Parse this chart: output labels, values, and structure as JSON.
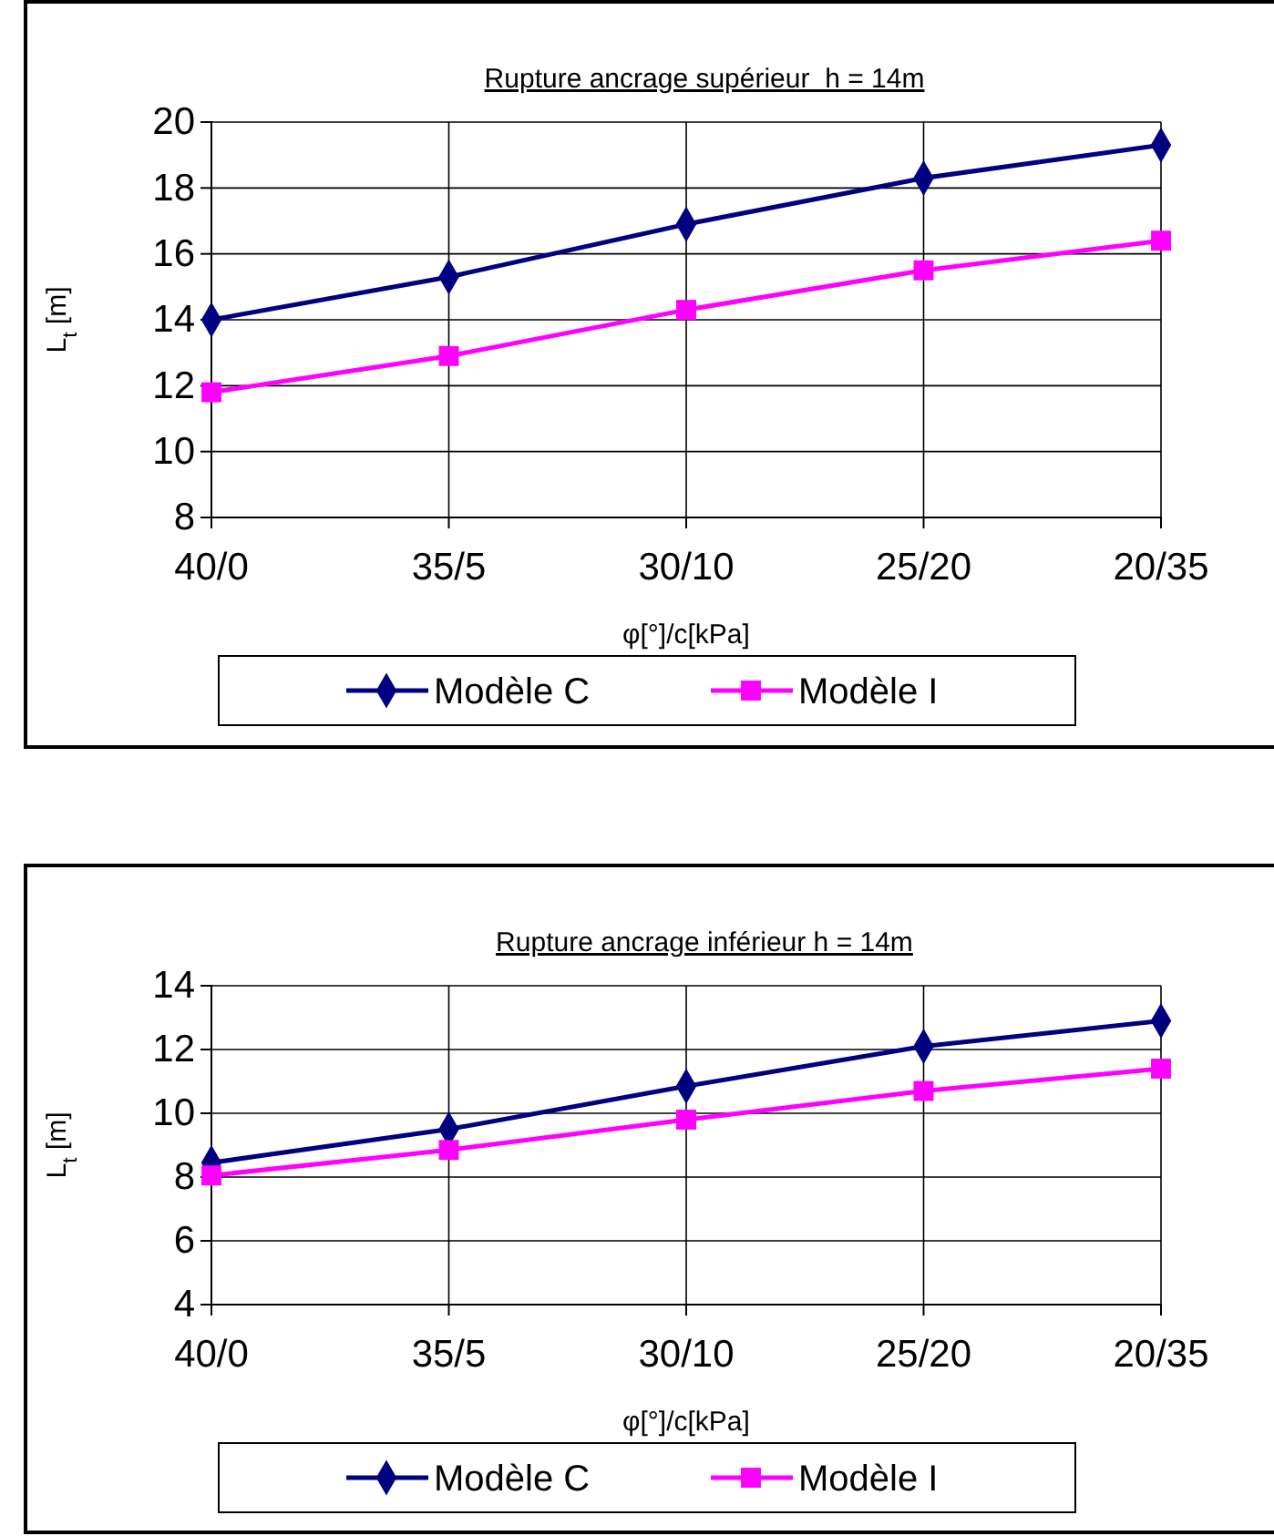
{
  "chart_data": [
    {
      "type": "line",
      "title": "Rupture ancrage supérieur  h = 14m",
      "xlabel": "φ[°]/c[kPa]",
      "ylabel": "L$_{t}$ [m]",
      "categories": [
        "40/0",
        "35/5",
        "30/10",
        "25/20",
        "20/35"
      ],
      "series": [
        {
          "name": "Modèle C",
          "color": "#000080",
          "marker": "diamond",
          "values": [
            14.0,
            15.3,
            16.9,
            18.3,
            19.3
          ]
        },
        {
          "name": "Modèle I",
          "color": "#ff00ff",
          "marker": "square",
          "values": [
            11.8,
            12.9,
            14.3,
            15.5,
            16.4
          ]
        }
      ],
      "ylim": [
        8,
        20
      ],
      "yticks": [
        8,
        10,
        12,
        14,
        16,
        18,
        20
      ],
      "grid": true,
      "legend": "bottom"
    },
    {
      "type": "line",
      "title": "Rupture ancrage inférieur h = 14m",
      "xlabel": "φ[°]/c[kPa]",
      "ylabel": "L$_{t}$ [m]",
      "categories": [
        "40/0",
        "35/5",
        "30/10",
        "25/20",
        "20/35"
      ],
      "series": [
        {
          "name": "Modèle C",
          "color": "#000080",
          "marker": "diamond",
          "values": [
            8.45,
            9.5,
            10.85,
            12.1,
            12.9
          ]
        },
        {
          "name": "Modèle I",
          "color": "#ff00ff",
          "marker": "square",
          "values": [
            8.05,
            8.85,
            9.8,
            10.7,
            11.4
          ]
        }
      ],
      "ylim": [
        4,
        14
      ],
      "yticks": [
        4,
        6,
        8,
        10,
        12,
        14
      ],
      "grid": true,
      "legend": "bottom"
    }
  ]
}
